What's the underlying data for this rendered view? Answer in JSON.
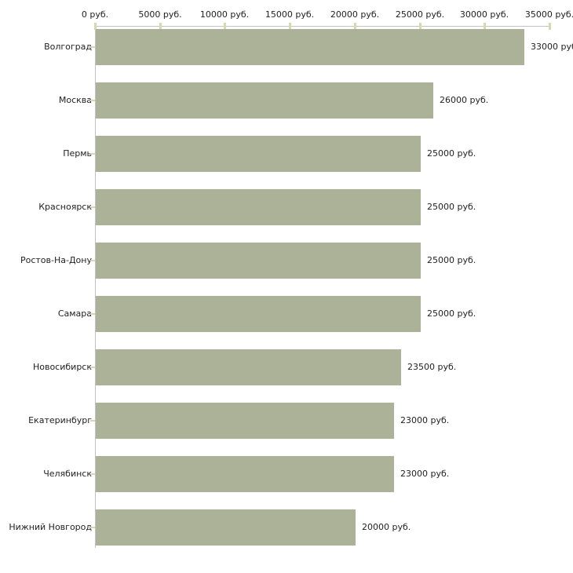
{
  "chart_data": {
    "type": "bar",
    "orientation": "horizontal",
    "title": "",
    "xlabel": "",
    "ylabel": "",
    "categories": [
      "Волгоград",
      "Москва",
      "Пермь",
      "Красноярск",
      "Ростов-На-Дону",
      "Самара",
      "Новосибирск",
      "Екатеринбург",
      "Челябинск",
      "Нижний Новгород"
    ],
    "values": [
      33000,
      26000,
      25000,
      25000,
      25000,
      25000,
      23500,
      23000,
      23000,
      20000
    ],
    "value_labels": [
      "33000 руб",
      "26000 руб.",
      "25000 руб.",
      "25000 руб.",
      "25000 руб.",
      "25000 руб.",
      "23500 руб.",
      "23000 руб.",
      "23000 руб.",
      "20000 руб."
    ],
    "x_axis": {
      "position": "top",
      "tick_values": [
        0,
        5000,
        10000,
        15000,
        20000,
        25000,
        30000,
        35000
      ],
      "tick_labels": [
        "0 руб.",
        "5000 руб.",
        "10000 руб.",
        "15000 руб.",
        "20000 руб.",
        "25000 руб.",
        "30000 руб.",
        "35000 руб."
      ],
      "range": [
        0,
        35000
      ]
    },
    "grid": false,
    "legend": false,
    "colors": {
      "bar": "#acb298",
      "axis_line": "#c2c2c2",
      "tick": "#d8d8ae",
      "text": "#222222",
      "background": "#ffffff"
    }
  }
}
